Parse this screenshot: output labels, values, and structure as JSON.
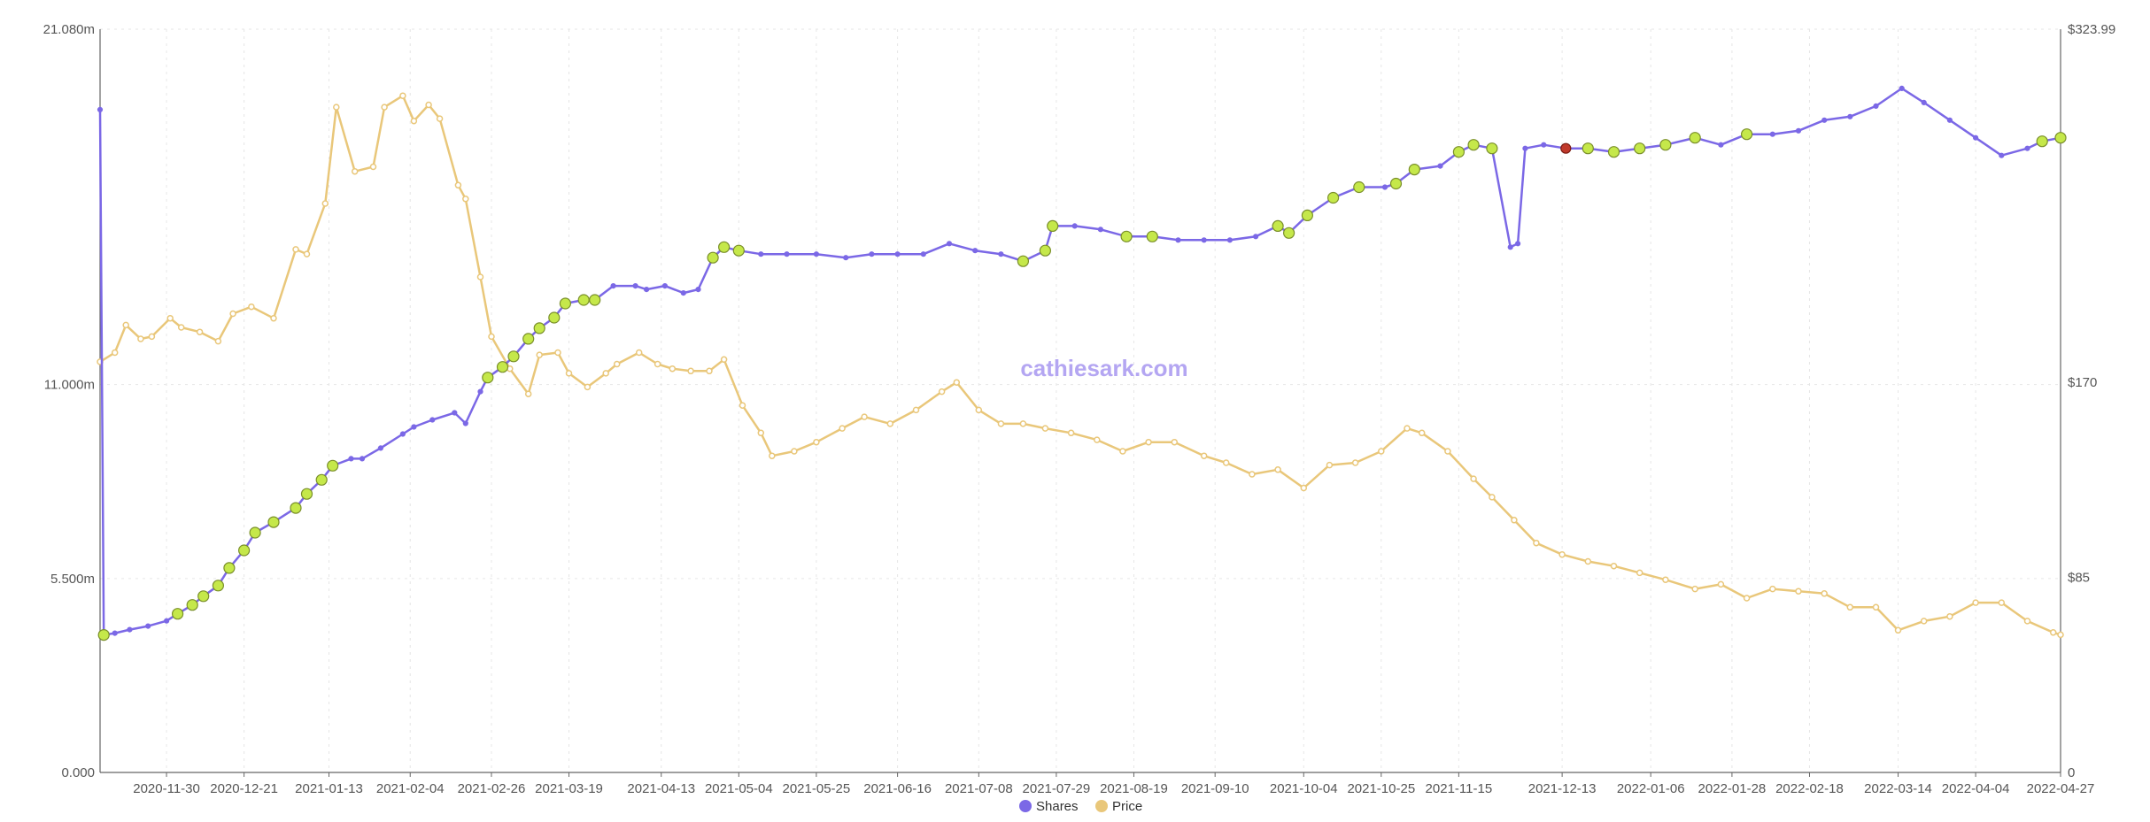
{
  "watermark": "cathiesark.com",
  "chart_data": {
    "type": "line",
    "x_tick_labels": [
      "2020-11-30",
      "2020-12-21",
      "2021-01-13",
      "2021-02-04",
      "2021-02-26",
      "2021-03-19",
      "2021-04-13",
      "2021-05-04",
      "2021-05-25",
      "2021-06-16",
      "2021-07-08",
      "2021-07-29",
      "2021-08-19",
      "2021-09-10",
      "2021-10-04",
      "2021-10-25",
      "2021-11-15",
      "2021-12-13",
      "2022-01-06",
      "2022-01-28",
      "2022-02-18",
      "2022-03-14",
      "2022-04-04",
      "2022-04-27"
    ],
    "x_range": [
      "2020-11-12",
      "2022-04-27"
    ],
    "y_left": {
      "label": "",
      "ylim": [
        0,
        21.08
      ],
      "tick_labels": [
        "0.000",
        "5.500m",
        "11.000m",
        "21.080m"
      ],
      "tick_values": [
        0,
        5.5,
        11,
        21.08
      ]
    },
    "y_right": {
      "label": "",
      "ylim": [
        0,
        323.99
      ],
      "tick_labels": [
        "0",
        "$85",
        "$170",
        "$323.99"
      ],
      "tick_values": [
        0,
        85,
        170,
        323.99
      ]
    },
    "grid": true,
    "legend_position": "bottom-center",
    "colors": {
      "shares": "#7b68e6",
      "price": "#e9c77a",
      "buy_marker": "#c5e84a",
      "sell_marker": "#c0392b"
    },
    "series": [
      {
        "name": "Shares",
        "axis": "left",
        "unit": "millions",
        "x": [
          "2020-11-12",
          "2020-11-13",
          "2020-11-16",
          "2020-11-20",
          "2020-11-25",
          "2020-11-30",
          "2020-12-03",
          "2020-12-07",
          "2020-12-10",
          "2020-12-14",
          "2020-12-17",
          "2020-12-21",
          "2020-12-24",
          "2020-12-29",
          "2021-01-04",
          "2021-01-07",
          "2021-01-11",
          "2021-01-14",
          "2021-01-19",
          "2021-01-22",
          "2021-01-27",
          "2021-02-02",
          "2021-02-05",
          "2021-02-10",
          "2021-02-16",
          "2021-02-19",
          "2021-02-23",
          "2021-02-25",
          "2021-03-01",
          "2021-03-04",
          "2021-03-08",
          "2021-03-11",
          "2021-03-15",
          "2021-03-18",
          "2021-03-23",
          "2021-03-26",
          "2021-03-31",
          "2021-04-06",
          "2021-04-09",
          "2021-04-14",
          "2021-04-19",
          "2021-04-23",
          "2021-04-27",
          "2021-04-30",
          "2021-05-04",
          "2021-05-10",
          "2021-05-17",
          "2021-05-25",
          "2021-06-02",
          "2021-06-09",
          "2021-06-16",
          "2021-06-23",
          "2021-06-30",
          "2021-07-07",
          "2021-07-14",
          "2021-07-20",
          "2021-07-26",
          "2021-07-28",
          "2021-08-03",
          "2021-08-10",
          "2021-08-17",
          "2021-08-24",
          "2021-08-31",
          "2021-09-07",
          "2021-09-14",
          "2021-09-21",
          "2021-09-27",
          "2021-09-30",
          "2021-10-05",
          "2021-10-12",
          "2021-10-19",
          "2021-10-26",
          "2021-10-29",
          "2021-11-03",
          "2021-11-10",
          "2021-11-15",
          "2021-11-19",
          "2021-11-24",
          "2021-11-29",
          "2021-12-01",
          "2021-12-03",
          "2021-12-08",
          "2021-12-14",
          "2021-12-20",
          "2021-12-27",
          "2022-01-03",
          "2022-01-10",
          "2022-01-18",
          "2022-01-25",
          "2022-02-01",
          "2022-02-08",
          "2022-02-15",
          "2022-02-22",
          "2022-03-01",
          "2022-03-08",
          "2022-03-15",
          "2022-03-21",
          "2022-03-28",
          "2022-04-04",
          "2022-04-11",
          "2022-04-18",
          "2022-04-22",
          "2022-04-27"
        ],
        "values": [
          18.8,
          3.9,
          3.95,
          4.05,
          4.15,
          4.3,
          4.5,
          4.75,
          5.0,
          5.3,
          5.8,
          6.3,
          6.8,
          7.1,
          7.5,
          7.9,
          8.3,
          8.7,
          8.9,
          8.9,
          9.2,
          9.6,
          9.8,
          10.0,
          10.2,
          9.9,
          10.8,
          11.2,
          11.5,
          11.8,
          12.3,
          12.6,
          12.9,
          13.3,
          13.4,
          13.4,
          13.8,
          13.8,
          13.7,
          13.8,
          13.6,
          13.7,
          14.6,
          14.9,
          14.8,
          14.7,
          14.7,
          14.7,
          14.6,
          14.7,
          14.7,
          14.7,
          15.0,
          14.8,
          14.7,
          14.5,
          14.8,
          15.5,
          15.5,
          15.4,
          15.2,
          15.2,
          15.1,
          15.1,
          15.1,
          15.2,
          15.5,
          15.3,
          15.8,
          16.3,
          16.6,
          16.6,
          16.7,
          17.1,
          17.2,
          17.6,
          17.8,
          17.7,
          14.9,
          15.0,
          17.7,
          17.8,
          17.7,
          17.7,
          17.6,
          17.7,
          17.8,
          18.0,
          17.8,
          18.1,
          18.1,
          18.2,
          18.5,
          18.6,
          18.9,
          19.4,
          19.0,
          18.5,
          18.0,
          17.5,
          17.7,
          17.9,
          18.0
        ]
      },
      {
        "name": "Price",
        "axis": "right",
        "unit": "USD",
        "x": [
          "2020-11-12",
          "2020-11-16",
          "2020-11-19",
          "2020-11-23",
          "2020-11-26",
          "2020-12-01",
          "2020-12-04",
          "2020-12-09",
          "2020-12-14",
          "2020-12-18",
          "2020-12-23",
          "2020-12-29",
          "2021-01-04",
          "2021-01-07",
          "2021-01-12",
          "2021-01-15",
          "2021-01-20",
          "2021-01-25",
          "2021-01-28",
          "2021-02-02",
          "2021-02-05",
          "2021-02-09",
          "2021-02-12",
          "2021-02-17",
          "2021-02-19",
          "2021-02-23",
          "2021-02-26",
          "2021-03-03",
          "2021-03-08",
          "2021-03-11",
          "2021-03-16",
          "2021-03-19",
          "2021-03-24",
          "2021-03-29",
          "2021-04-01",
          "2021-04-07",
          "2021-04-12",
          "2021-04-16",
          "2021-04-21",
          "2021-04-26",
          "2021-04-30",
          "2021-05-05",
          "2021-05-10",
          "2021-05-13",
          "2021-05-19",
          "2021-05-25",
          "2021-06-01",
          "2021-06-07",
          "2021-06-14",
          "2021-06-21",
          "2021-06-28",
          "2021-07-02",
          "2021-07-08",
          "2021-07-14",
          "2021-07-20",
          "2021-07-26",
          "2021-08-02",
          "2021-08-09",
          "2021-08-16",
          "2021-08-23",
          "2021-08-30",
          "2021-09-07",
          "2021-09-13",
          "2021-09-20",
          "2021-09-27",
          "2021-10-04",
          "2021-10-11",
          "2021-10-18",
          "2021-10-25",
          "2021-11-01",
          "2021-11-05",
          "2021-11-12",
          "2021-11-19",
          "2021-11-24",
          "2021-11-30",
          "2021-12-06",
          "2021-12-13",
          "2021-12-20",
          "2021-12-27",
          "2022-01-03",
          "2022-01-10",
          "2022-01-18",
          "2022-01-25",
          "2022-02-01",
          "2022-02-08",
          "2022-02-15",
          "2022-02-22",
          "2022-03-01",
          "2022-03-08",
          "2022-03-14",
          "2022-03-21",
          "2022-03-28",
          "2022-04-04",
          "2022-04-11",
          "2022-04-18",
          "2022-04-25",
          "2022-04-27"
        ],
        "values": [
          179,
          183,
          195,
          189,
          190,
          198,
          194,
          192,
          188,
          200,
          203,
          198,
          228,
          226,
          248,
          290,
          262,
          264,
          290,
          295,
          284,
          291,
          285,
          256,
          250,
          216,
          190,
          176,
          165,
          182,
          183,
          174,
          168,
          174,
          178,
          183,
          178,
          176,
          175,
          175,
          180,
          160,
          148,
          138,
          140,
          144,
          150,
          155,
          152,
          158,
          166,
          170,
          158,
          152,
          152,
          150,
          148,
          145,
          140,
          144,
          144,
          138,
          135,
          130,
          132,
          124,
          134,
          135,
          140,
          150,
          148,
          140,
          128,
          120,
          110,
          100,
          95,
          92,
          90,
          87,
          84,
          80,
          82,
          76,
          80,
          79,
          78,
          72,
          72,
          62,
          66,
          68,
          74,
          74,
          66,
          61,
          60
        ]
      }
    ],
    "markers": {
      "buy_dates": [
        "2020-11-13",
        "2020-12-03",
        "2020-12-07",
        "2020-12-10",
        "2020-12-14",
        "2020-12-17",
        "2020-12-21",
        "2020-12-24",
        "2020-12-29",
        "2021-01-04",
        "2021-01-07",
        "2021-01-11",
        "2021-01-14",
        "2021-02-25",
        "2021-03-01",
        "2021-03-04",
        "2021-03-08",
        "2021-03-11",
        "2021-03-15",
        "2021-03-18",
        "2021-03-23",
        "2021-03-26",
        "2021-04-27",
        "2021-04-30",
        "2021-05-04",
        "2021-07-20",
        "2021-07-26",
        "2021-07-28",
        "2021-08-17",
        "2021-08-24",
        "2021-09-27",
        "2021-09-30",
        "2021-10-05",
        "2021-10-12",
        "2021-10-19",
        "2021-10-29",
        "2021-11-03",
        "2021-11-15",
        "2021-11-19",
        "2021-11-24",
        "2021-12-20",
        "2021-12-27",
        "2022-01-03",
        "2022-01-10",
        "2022-01-18",
        "2022-02-01",
        "2022-04-22",
        "2022-04-27"
      ],
      "sell_dates": [
        "2021-12-14"
      ]
    },
    "legend": [
      {
        "name": "Shares",
        "color": "#7b68e6"
      },
      {
        "name": "Price",
        "color": "#e9c77a"
      }
    ]
  }
}
